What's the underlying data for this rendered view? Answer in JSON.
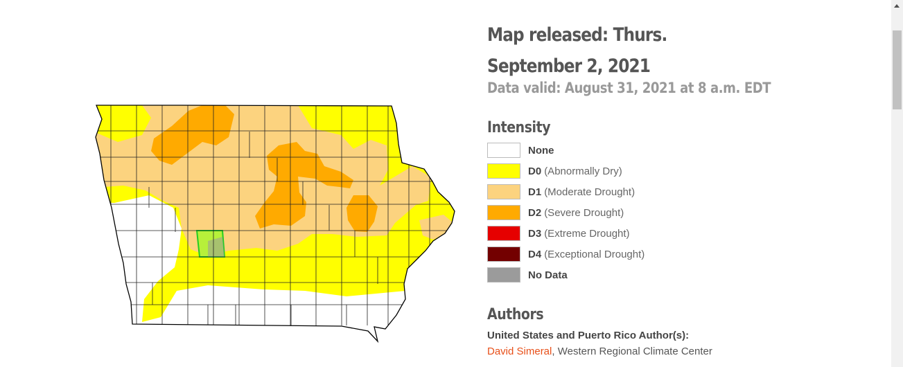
{
  "release": {
    "title": "Map released: Thurs. September 2, 2021",
    "valid": "Data valid: August 31, 2021 at 8 a.m. EDT"
  },
  "legend": {
    "heading": "Intensity",
    "items": [
      {
        "code": "None",
        "desc": "",
        "color": "#ffffff"
      },
      {
        "code": "D0",
        "desc": "(Abnormally Dry)",
        "color": "#ffff00"
      },
      {
        "code": "D1",
        "desc": "(Moderate Drought)",
        "color": "#fcd37f"
      },
      {
        "code": "D2",
        "desc": "(Severe Drought)",
        "color": "#ffaa00"
      },
      {
        "code": "D3",
        "desc": "(Extreme Drought)",
        "color": "#e60000"
      },
      {
        "code": "D4",
        "desc": "(Exceptional Drought)",
        "color": "#730000"
      },
      {
        "code": "No Data",
        "desc": "",
        "color": "#9b9b9b"
      }
    ]
  },
  "authors": {
    "heading": "Authors",
    "sub": "United States and Puerto Rico Author(s):",
    "name": "David Simeral",
    "org": ", Western Regional Climate Center"
  },
  "map": {
    "region": "Iowa",
    "highlight_color": "#b7f03a",
    "highlight_border": "#22cc22"
  }
}
